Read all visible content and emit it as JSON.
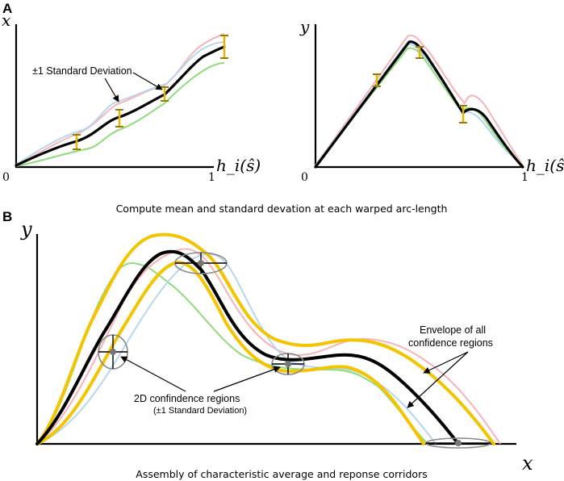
{
  "panel_a": {
    "letter": "A",
    "left_plot": {
      "y_label": "x",
      "x_label": "h_i(ŝ)",
      "tick_zero": "0",
      "tick_one": "1",
      "annotation": "±1 Standard Deviation"
    },
    "right_plot": {
      "y_label": "y",
      "x_label": "h_i(ŝ)",
      "tick_zero": "0",
      "tick_one": "1"
    },
    "caption": "Compute mean and standard devation at each warped arc-length"
  },
  "panel_b": {
    "letter": "B",
    "y_label": "y",
    "x_label": "x",
    "envelope_note_line1": "Envelope of all",
    "envelope_note_line2": "confidence regions",
    "confidence_note_line1": "2D confindence regions",
    "confidence_note_line2": "(±1 Standard Deviation)",
    "caption": "Assembly of characteristic average and reponse corridors"
  },
  "colors": {
    "mean": "#000000",
    "sample_pink": "#f7b3b8",
    "sample_blue": "#b6d7ee",
    "sample_green": "#8fdc7c",
    "corridor": "#f3c400",
    "error_bar": "#e7b600"
  }
}
